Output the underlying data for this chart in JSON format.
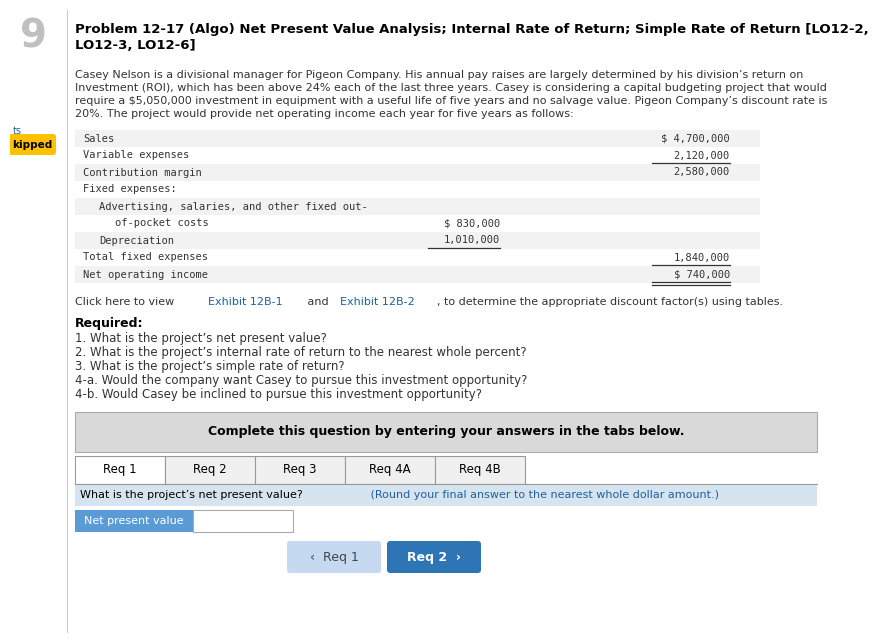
{
  "page_number": "9",
  "title_line1": "Problem 12-17 (Algo) Net Present Value Analysis; Internal Rate of Return; Simple Rate of Return [LO12-2,",
  "title_line2": "LO12-3, LO12-6]",
  "para_lines": [
    "Casey Nelson is a divisional manager for Pigeon Company. His annual pay raises are largely determined by his division’s return on",
    "Investment (ROI), which has been above 24% each of the last three years. Casey is considering a capital budgeting project that would",
    "require a $5,050,000 investment in equipment with a useful life of five years and no salvage value. Pigeon Company’s discount rate is",
    "20%. The project would provide net operating income each year for five years as follows:"
  ],
  "left_label": "ts",
  "skipped_label": "kipped",
  "table_rows": [
    {
      "label": "Sales",
      "indent": 0,
      "col1": "",
      "col2": "$ 4,700,000",
      "underline_col2": false,
      "dbl_underline_col2": false
    },
    {
      "label": "Variable expenses",
      "indent": 0,
      "col1": "",
      "col2": "2,120,000",
      "underline_col2": true,
      "dbl_underline_col2": false
    },
    {
      "label": "Contribution margin",
      "indent": 0,
      "col1": "",
      "col2": "2,580,000",
      "underline_col2": false,
      "dbl_underline_col2": false
    },
    {
      "label": "Fixed expenses:",
      "indent": 0,
      "col1": "",
      "col2": "",
      "underline_col2": false,
      "dbl_underline_col2": false
    },
    {
      "label": "Advertising, salaries, and other fixed out-",
      "indent": 1,
      "col1": "",
      "col2": "",
      "underline_col2": false,
      "dbl_underline_col2": false
    },
    {
      "label": "of-pocket costs",
      "indent": 2,
      "col1": "$ 830,000",
      "col2": "",
      "underline_col2": false,
      "dbl_underline_col2": false
    },
    {
      "label": "Depreciation",
      "indent": 1,
      "col1": "1,010,000",
      "col2": "",
      "underline_col1": true,
      "underline_col2": false,
      "dbl_underline_col2": false
    },
    {
      "label": "Total fixed expenses",
      "indent": 0,
      "col1": "",
      "col2": "1,840,000",
      "underline_col2": true,
      "dbl_underline_col2": false
    },
    {
      "label": "Net operating income",
      "indent": 0,
      "col1": "",
      "col2": "$ 740,000",
      "underline_col2": false,
      "dbl_underline_col2": true
    }
  ],
  "exhibit_parts": [
    {
      "text": "Click here to view ",
      "link": false
    },
    {
      "text": "Exhibit 12B-1",
      "link": true
    },
    {
      "text": " and ",
      "link": false
    },
    {
      "text": "Exhibit 12B-2",
      "link": true
    },
    {
      "text": ", to determine the appropriate discount factor(s) using tables.",
      "link": false
    }
  ],
  "required_label": "Required:",
  "required_items": [
    "1. What is the project’s net present value?",
    "2. What is the project’s internal rate of return to the nearest whole percent?",
    "3. What is the project’s simple rate of return?",
    "4-a. Would the company want Casey to pursue this investment opportunity?",
    "4-b. Would Casey be inclined to pursue this investment opportunity?"
  ],
  "complete_box_text": "Complete this question by entering your answers in the tabs below.",
  "tabs": [
    "Req 1",
    "Req 2",
    "Req 3",
    "Req 4A",
    "Req 4B"
  ],
  "req_question": "What is the project’s net present value?",
  "req_question_hint": " (Round your final answer to the nearest whole dollar amount.)",
  "input_label": "Net present value",
  "nav_back": "‹  Req 1",
  "nav_forward": "Req 2  ›",
  "bg_color": "#ffffff",
  "title_color": "#000000",
  "body_color": "#333333",
  "exhibit_link_color": "#2060a0",
  "complete_box_bg": "#d9d9d9",
  "tab_bg_active": "#ffffff",
  "tab_bg_inactive": "#f0f0f0",
  "req_info_bg": "#d6e4f0",
  "input_label_bg": "#5b9bd5",
  "nav_back_bg": "#c5d9f1",
  "nav_forward_bg": "#2e75b6",
  "skipped_bg": "#ffc000",
  "page_num_color": "#c0c0c0",
  "table_row_alt": "#f2f2f2",
  "table_row_white": "#ffffff",
  "separator_color": "#cccccc"
}
